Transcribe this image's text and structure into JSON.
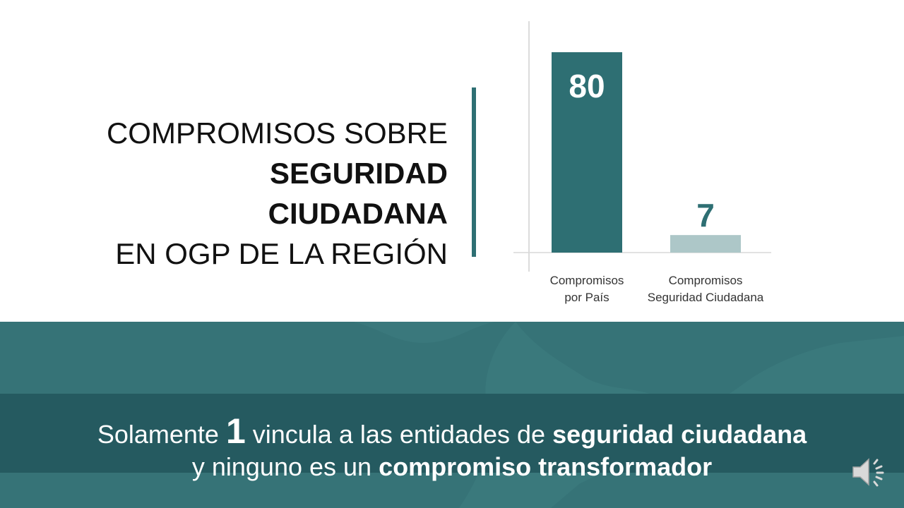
{
  "title": {
    "line1": "COMPROMISOS SOBRE",
    "line2": "SEGURIDAD",
    "line3": "CIUDADANA",
    "line4": "EN OGP DE LA REGIÓN"
  },
  "chart_data": {
    "type": "bar",
    "categories": [
      [
        "Compromisos",
        "por País"
      ],
      [
        "Compromisos",
        "Seguridad Ciudadana"
      ]
    ],
    "values": [
      80,
      7
    ],
    "bar_colors": [
      "#2e6f73",
      "#adc7c8"
    ],
    "data_labels": [
      "80",
      "7"
    ],
    "ylim": [
      0,
      80
    ]
  },
  "message": {
    "prefix": "Solamente ",
    "number": "1",
    "middle": " vincula a las entidades de ",
    "bold1": "seguridad ciudadana",
    "line2_prefix": "y ninguno es un ",
    "bold2": "compromiso transformador"
  },
  "icons": {
    "audio": "speaker-icon"
  },
  "colors": {
    "accent": "#2e6f73",
    "band": "#367377",
    "message_box": "#255a60",
    "bar_light": "#adc7c8"
  }
}
